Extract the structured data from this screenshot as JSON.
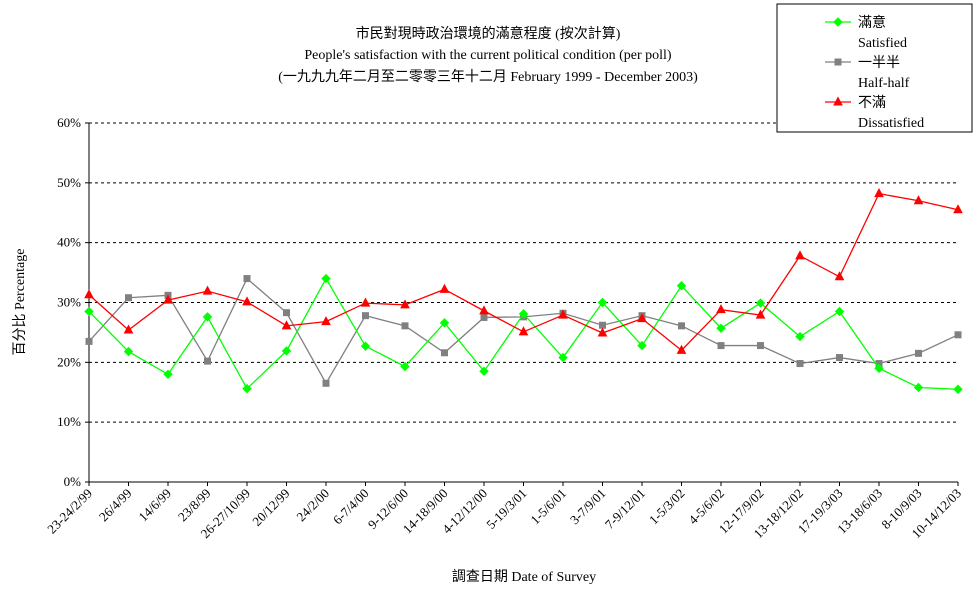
{
  "chart_data": {
    "type": "line",
    "title_lines": [
      "市民對現時政治環境的滿意程度 (按次計算)",
      "People's satisfaction with the current political condition (per poll)",
      "(一九九九年二月至二零零三年十二月 February 1999 - December 2003)"
    ],
    "xlabel": "調查日期 Date of Survey",
    "ylabel": "百分比 Percentage",
    "ylim": [
      0,
      60
    ],
    "yticks": [
      0,
      10,
      20,
      30,
      40,
      50,
      60
    ],
    "ytick_labels": [
      "0%",
      "10%",
      "20%",
      "30%",
      "40%",
      "50%",
      "60%"
    ],
    "grid": "horizontal-dashed",
    "legend_position": "top-right",
    "categories": [
      "23-24/2/99",
      "26/4/99",
      "14/6/99",
      "23/8/99",
      "26-27/10/99",
      "20/12/99",
      "24/2/00",
      "6-7/4/00",
      "9-12/6/00",
      "14-18/9/00",
      "4-12/12/00",
      "5-19/3/01",
      "1-5/6/01",
      "3-7/9/01",
      "7-9/12/01",
      "1-5/3/02",
      "4-5/6/02",
      "12-17/9/02",
      "13-18/12/02",
      "17-19/3/03",
      "13-18/6/03",
      "8-10/9/03",
      "10-14/12/03"
    ],
    "series": [
      {
        "name": "滿意",
        "name_en": "Satisfied",
        "color": "#00ff00",
        "marker": "diamond",
        "values": [
          28.5,
          21.8,
          18.0,
          27.6,
          15.6,
          21.9,
          34.0,
          22.7,
          19.3,
          26.6,
          18.5,
          28.1,
          20.8,
          30.0,
          22.8,
          32.8,
          25.7,
          29.9,
          24.3,
          28.5,
          19.0,
          15.8,
          15.5
        ]
      },
      {
        "name": "一半半",
        "name_en": "Half-half",
        "color": "#808080",
        "marker": "square",
        "values": [
          23.5,
          30.8,
          31.2,
          20.2,
          34.0,
          28.3,
          16.5,
          27.8,
          26.1,
          21.6,
          27.5,
          27.6,
          28.2,
          26.2,
          27.8,
          26.1,
          22.8,
          22.8,
          19.8,
          20.8,
          19.8,
          21.5,
          24.6
        ]
      },
      {
        "name": "不滿",
        "name_en": "Dissatisfied",
        "color": "#ff0000",
        "marker": "triangle",
        "values": [
          31.3,
          25.4,
          30.4,
          31.9,
          30.1,
          26.1,
          26.8,
          29.9,
          29.6,
          32.2,
          28.6,
          25.1,
          27.9,
          24.9,
          27.3,
          22.0,
          28.8,
          27.9,
          37.8,
          34.3,
          48.2,
          47.0,
          45.5
        ]
      }
    ]
  }
}
